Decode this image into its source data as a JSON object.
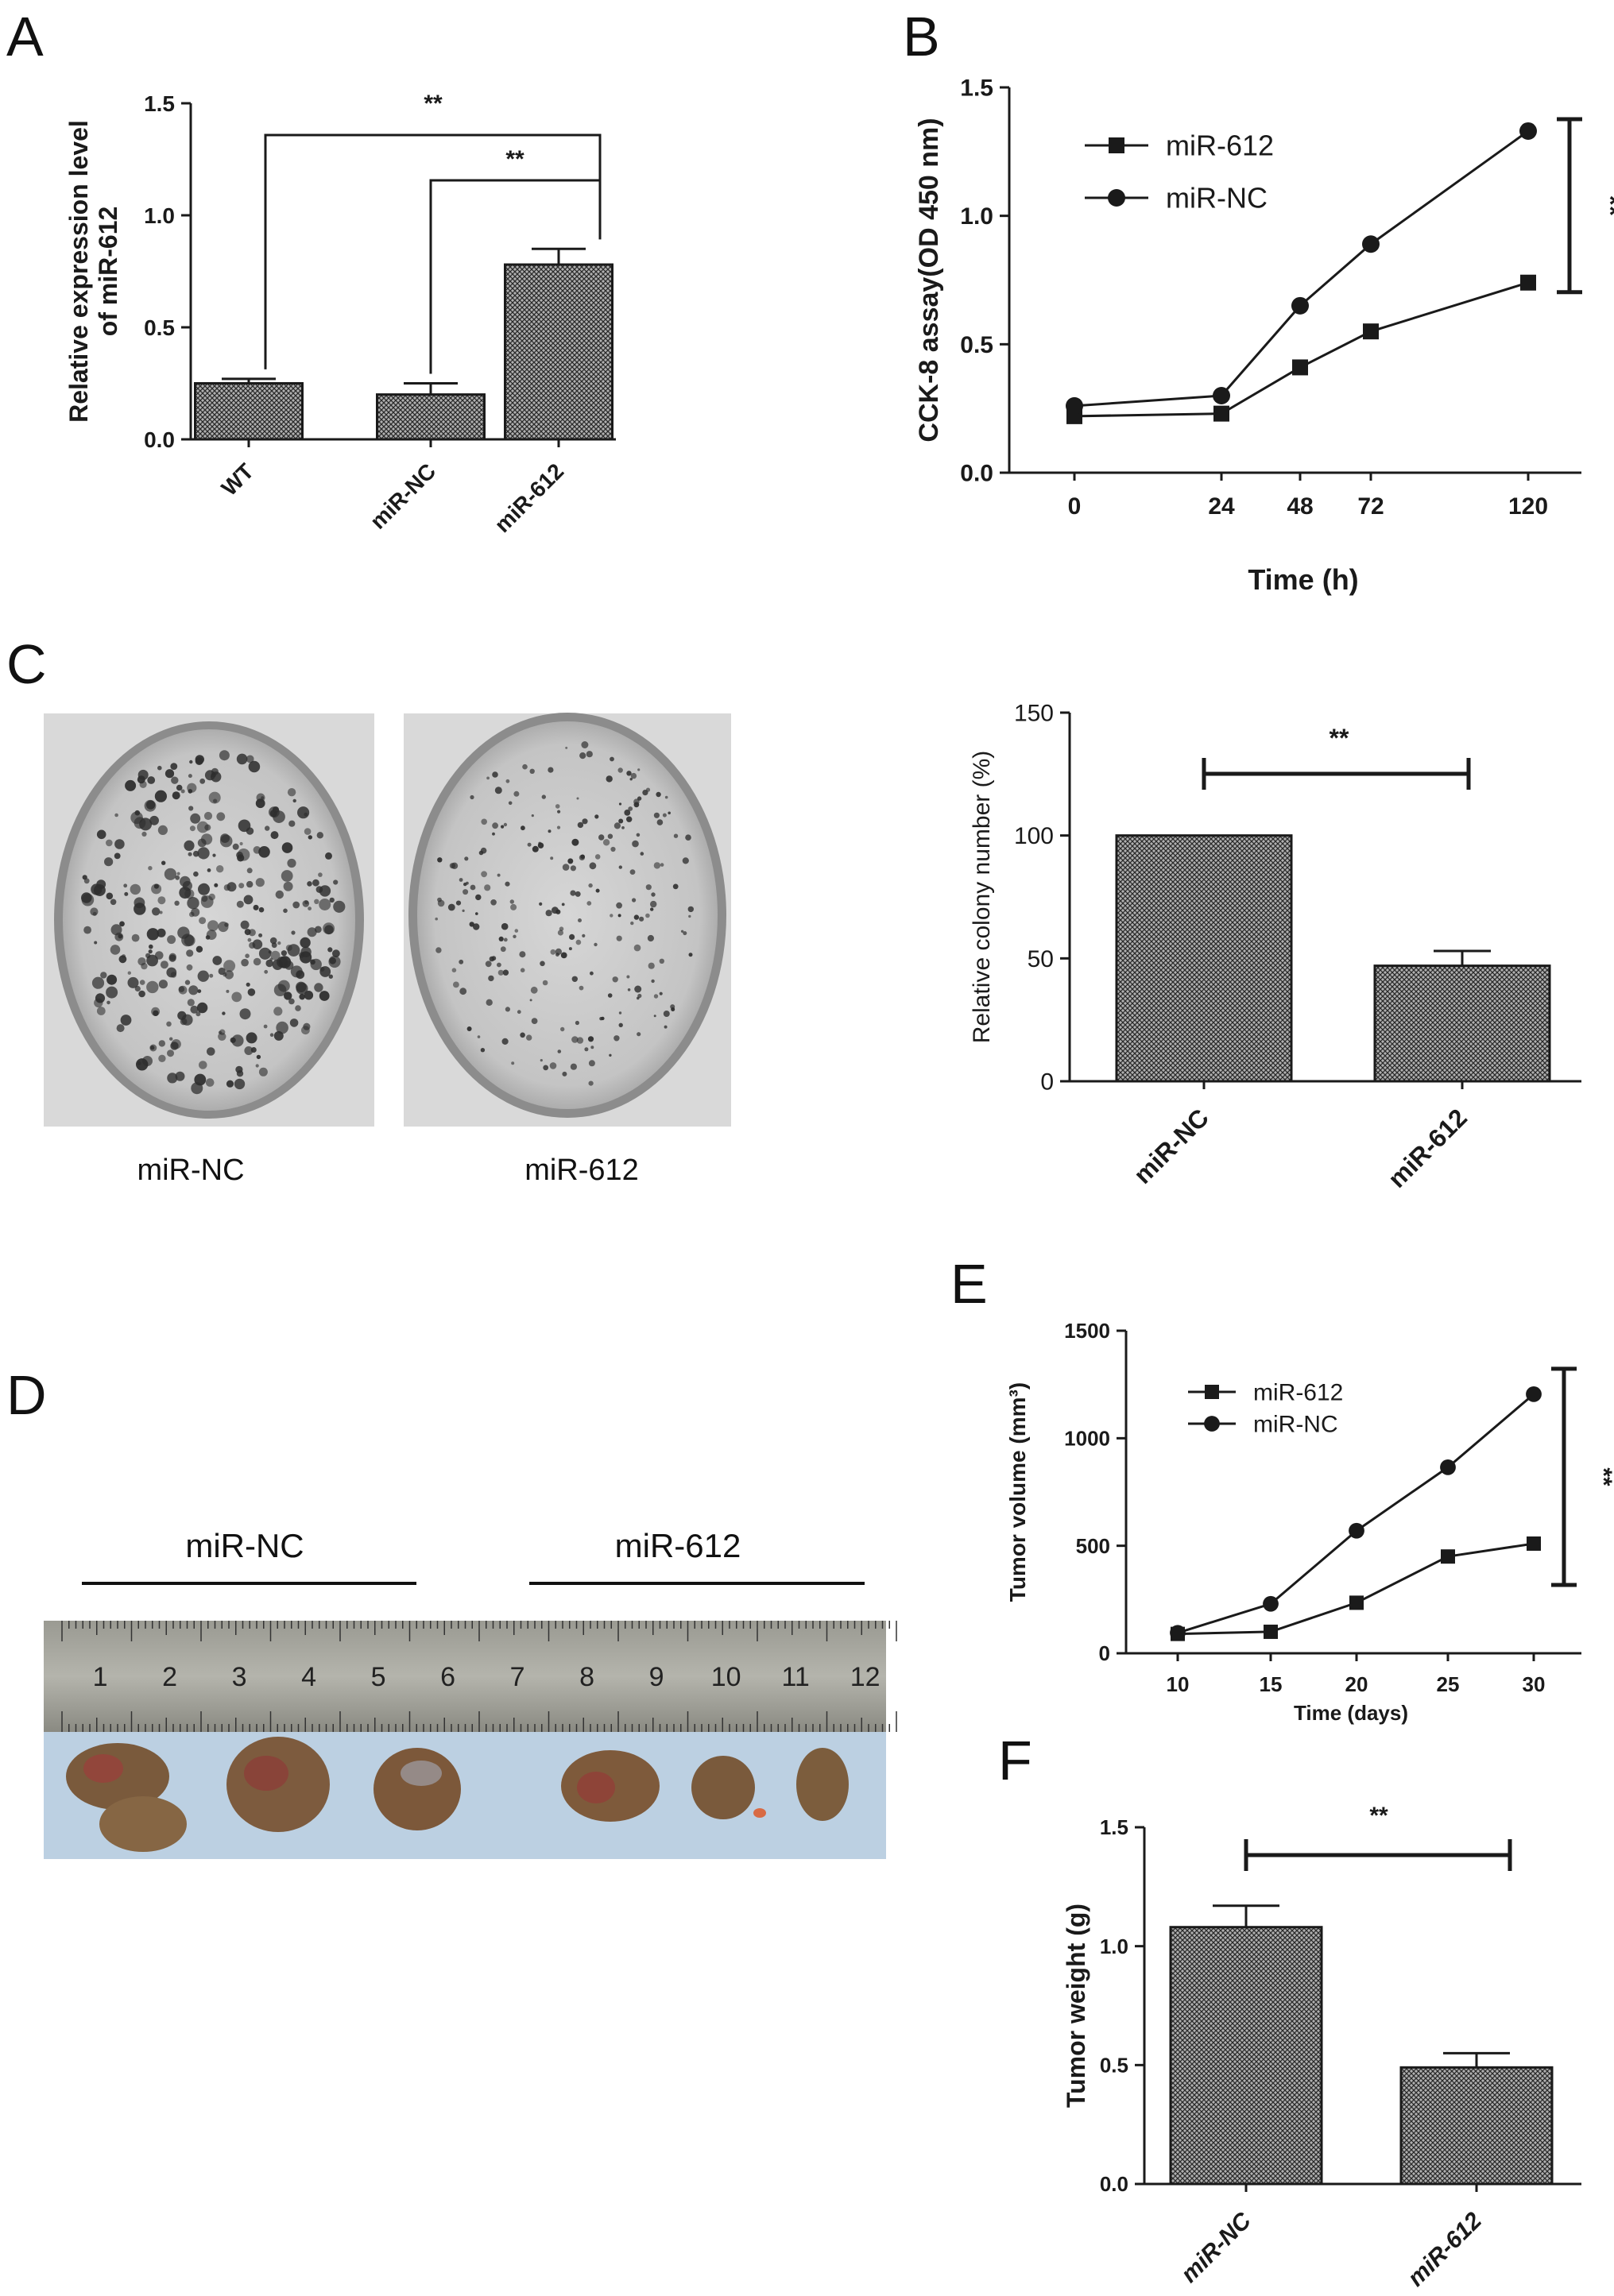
{
  "panels": {
    "A": "A",
    "B": "B",
    "C": "C",
    "D": "D",
    "E": "E",
    "F": "F"
  },
  "panel_c_images": {
    "left_caption": "miR-NC",
    "right_caption": "miR-612"
  },
  "panel_d_photo": {
    "left_group": "miR-NC",
    "right_group": "miR-612",
    "ruler_numbers": [
      "1",
      "2",
      "3",
      "4",
      "5",
      "6",
      "7",
      "8",
      "9",
      "10",
      "11",
      "12"
    ]
  },
  "colors": {
    "ink": "#1a1a1a",
    "bar_fill": "#9a9a9a",
    "photo_bg": "#dcdcdc",
    "ruler": "#8e8e86",
    "paper": "#b8cde0",
    "tumor": "#7a5a3c"
  },
  "chart_data": [
    {
      "id": "A",
      "type": "bar",
      "categories": [
        "WT",
        "miR-NC",
        "miR-612"
      ],
      "values": [
        0.25,
        0.2,
        0.78
      ],
      "errors": [
        0.02,
        0.05,
        0.07
      ],
      "ylabel": "Relative expression level of miR-612",
      "ylabel_lines": [
        "Relative expression level",
        "of miR-612"
      ],
      "ylim": [
        0,
        1.5
      ],
      "yticks": [
        "0.0",
        "0.5",
        "1.0",
        "1.5"
      ],
      "annotations": [
        "**",
        "**"
      ]
    },
    {
      "id": "B",
      "type": "line",
      "x": [
        "0",
        "24",
        "48",
        "72",
        "120"
      ],
      "series": [
        {
          "name": "miR-612",
          "marker": "square",
          "values": [
            0.22,
            0.23,
            0.41,
            0.55,
            0.74
          ]
        },
        {
          "name": "miR-NC",
          "marker": "circle",
          "values": [
            0.26,
            0.3,
            0.65,
            0.89,
            1.33
          ]
        }
      ],
      "xlabel": "Time (h)",
      "ylabel": "CCK-8 assay(OD 450 nm)",
      "ylim": [
        0,
        1.5
      ],
      "yticks": [
        "0.0",
        "0.5",
        "1.0",
        "1.5"
      ],
      "legend": "top-left",
      "annotations": [
        "**"
      ]
    },
    {
      "id": "C",
      "type": "bar",
      "categories": [
        "miR-NC",
        "miR-612"
      ],
      "values": [
        100,
        47
      ],
      "errors": [
        0,
        6
      ],
      "ylabel": "Relative colony number (%)",
      "ylim": [
        0,
        150
      ],
      "yticks": [
        "0",
        "50",
        "100",
        "150"
      ],
      "annotations": [
        "**"
      ]
    },
    {
      "id": "E",
      "type": "line",
      "x": [
        "10",
        "15",
        "20",
        "25",
        "30"
      ],
      "series": [
        {
          "name": "miR-612",
          "marker": "square",
          "values": [
            90,
            100,
            235,
            450,
            510
          ]
        },
        {
          "name": "miR-NC",
          "marker": "circle",
          "values": [
            95,
            230,
            570,
            865,
            1205
          ]
        }
      ],
      "xlabel": "Time (days)",
      "ylabel": "Tumor volume (mm³)",
      "ylim": [
        0,
        1500
      ],
      "yticks": [
        "0",
        "500",
        "1000",
        "1500"
      ],
      "legend": "top-left",
      "annotations": [
        "**"
      ]
    },
    {
      "id": "F",
      "type": "bar",
      "categories": [
        "miR-NC",
        "miR-612"
      ],
      "values": [
        1.08,
        0.49
      ],
      "errors": [
        0.09,
        0.06
      ],
      "ylabel": "Tumor weight (g)",
      "ylim": [
        0,
        1.5
      ],
      "yticks": [
        "0.0",
        "0.5",
        "1.0",
        "1.5"
      ],
      "annotations": [
        "**"
      ]
    }
  ]
}
